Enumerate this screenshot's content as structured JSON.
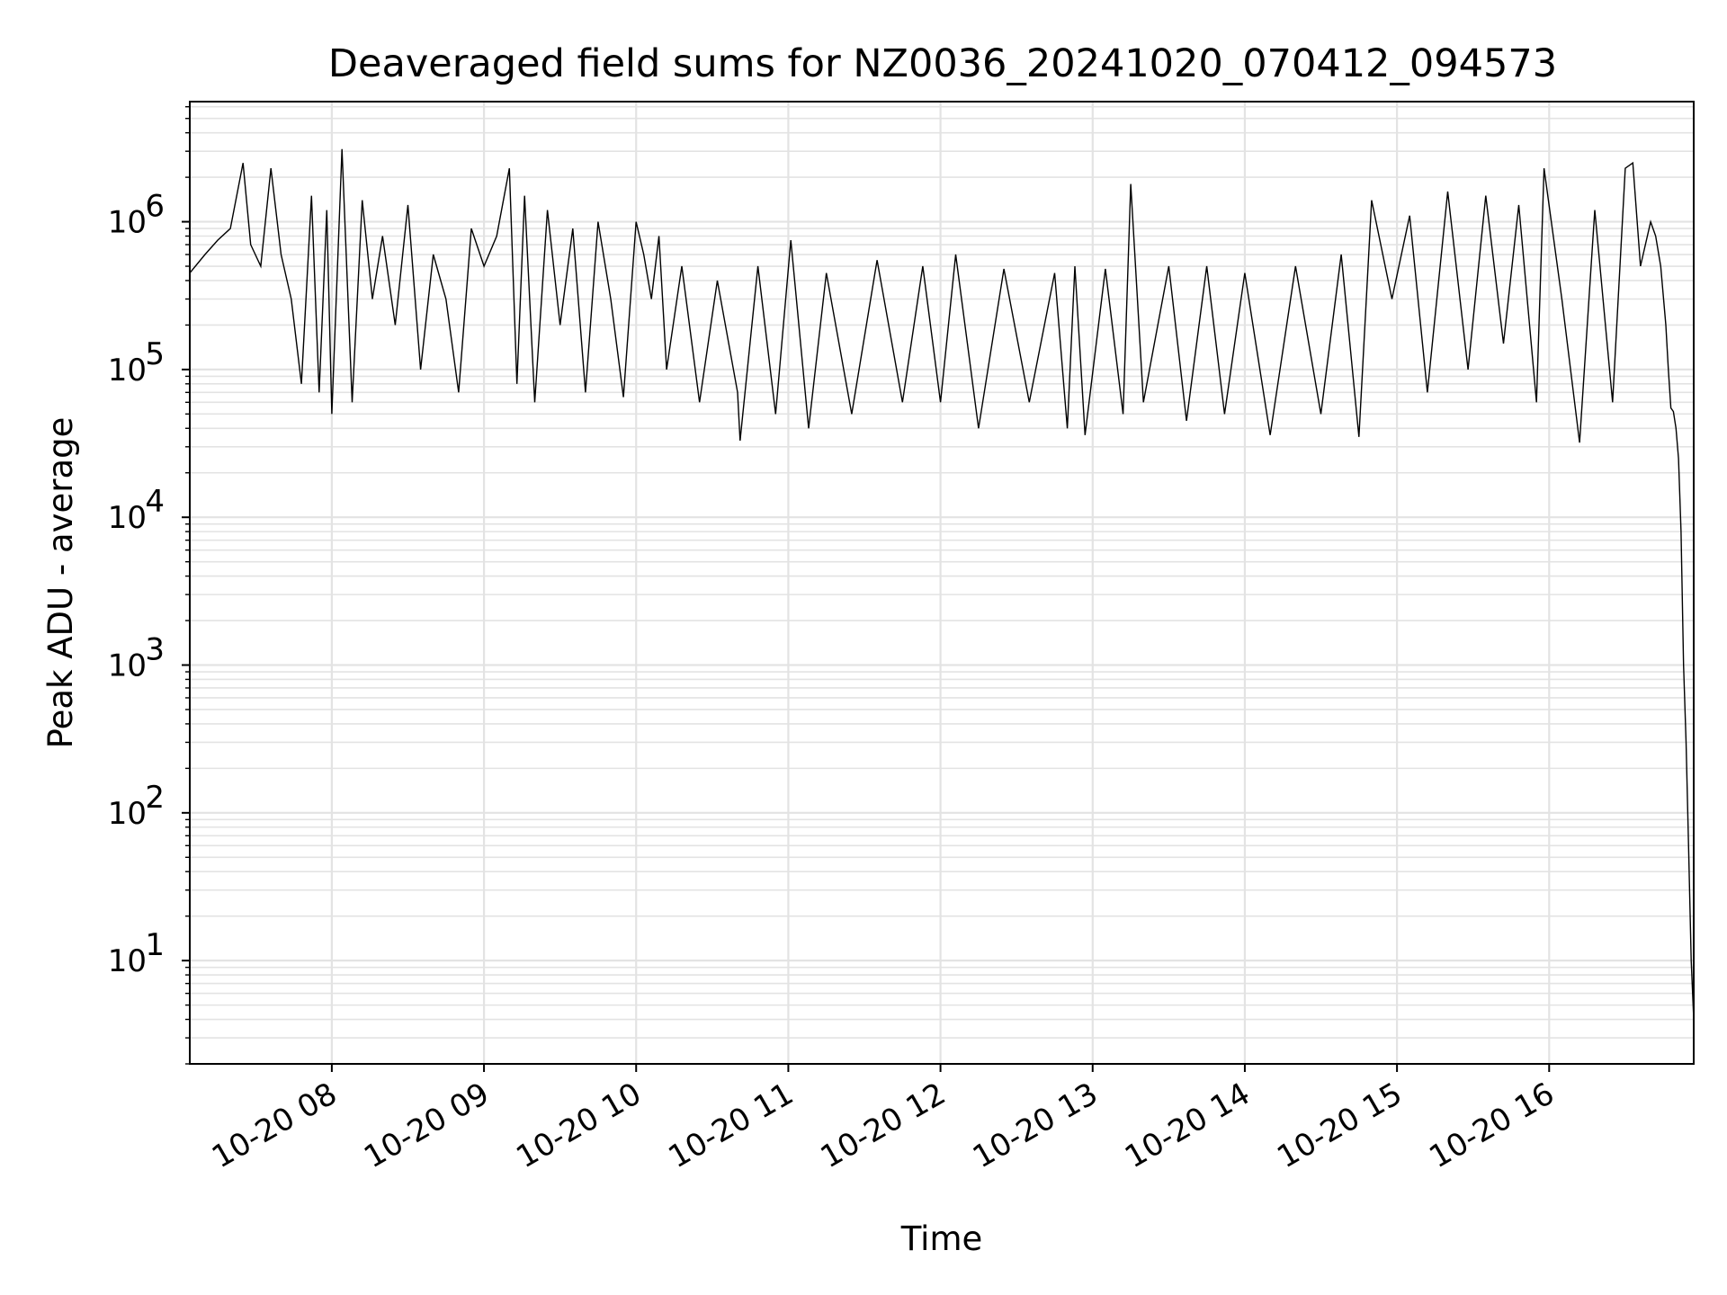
{
  "chart_data": {
    "type": "line",
    "title": "Deaveraged field sums for NZ0036_20241020_070412_094573",
    "xlabel": "Time",
    "ylabel": "Peak ADU - average",
    "yscale": "log",
    "ylim": [
      2,
      6500000
    ],
    "xlim": [
      "2024-10-20 07:04",
      "2024-10-20 16:57"
    ],
    "grid": true,
    "line_color": "#000000",
    "x_ticks": [
      {
        "t": "2024-10-20 08:00",
        "label": "10-20 08"
      },
      {
        "t": "2024-10-20 09:00",
        "label": "10-20 09"
      },
      {
        "t": "2024-10-20 10:00",
        "label": "10-20 10"
      },
      {
        "t": "2024-10-20 11:00",
        "label": "10-20 11"
      },
      {
        "t": "2024-10-20 12:00",
        "label": "10-20 12"
      },
      {
        "t": "2024-10-20 13:00",
        "label": "10-20 13"
      },
      {
        "t": "2024-10-20 14:00",
        "label": "10-20 14"
      },
      {
        "t": "2024-10-20 15:00",
        "label": "10-20 15"
      },
      {
        "t": "2024-10-20 16:00",
        "label": "10-20 16"
      }
    ],
    "y_ticks": [
      {
        "base": "10",
        "exp": "1",
        "value": 10
      },
      {
        "base": "10",
        "exp": "2",
        "value": 100
      },
      {
        "base": "10",
        "exp": "3",
        "value": 1000
      },
      {
        "base": "10",
        "exp": "4",
        "value": 10000
      },
      {
        "base": "10",
        "exp": "5",
        "value": 100000
      },
      {
        "base": "10",
        "exp": "6",
        "value": 1000000
      }
    ],
    "series": [
      {
        "values": [
          [
            "2024-10-20 07:04",
            450000
          ],
          [
            "2024-10-20 07:10",
            600000
          ],
          [
            "2024-10-20 07:15",
            750000
          ],
          [
            "2024-10-20 07:20",
            900000
          ],
          [
            "2024-10-20 07:25",
            2500000
          ],
          [
            "2024-10-20 07:28",
            700000
          ],
          [
            "2024-10-20 07:32",
            500000
          ],
          [
            "2024-10-20 07:36",
            2300000
          ],
          [
            "2024-10-20 07:40",
            600000
          ],
          [
            "2024-10-20 07:44",
            300000
          ],
          [
            "2024-10-20 07:48",
            80000
          ],
          [
            "2024-10-20 07:52",
            1500000
          ],
          [
            "2024-10-20 07:55",
            70000
          ],
          [
            "2024-10-20 07:58",
            1200000
          ],
          [
            "2024-10-20 08:00",
            50000
          ],
          [
            "2024-10-20 08:04",
            3100000
          ],
          [
            "2024-10-20 08:08",
            60000
          ],
          [
            "2024-10-20 08:12",
            1400000
          ],
          [
            "2024-10-20 08:16",
            300000
          ],
          [
            "2024-10-20 08:20",
            800000
          ],
          [
            "2024-10-20 08:25",
            200000
          ],
          [
            "2024-10-20 08:30",
            1300000
          ],
          [
            "2024-10-20 08:35",
            100000
          ],
          [
            "2024-10-20 08:40",
            600000
          ],
          [
            "2024-10-20 08:45",
            300000
          ],
          [
            "2024-10-20 08:50",
            70000
          ],
          [
            "2024-10-20 08:55",
            900000
          ],
          [
            "2024-10-20 09:00",
            500000
          ],
          [
            "2024-10-20 09:05",
            800000
          ],
          [
            "2024-10-20 09:10",
            2300000
          ],
          [
            "2024-10-20 09:13",
            80000
          ],
          [
            "2024-10-20 09:16",
            1500000
          ],
          [
            "2024-10-20 09:20",
            60000
          ],
          [
            "2024-10-20 09:25",
            1200000
          ],
          [
            "2024-10-20 09:30",
            200000
          ],
          [
            "2024-10-20 09:35",
            900000
          ],
          [
            "2024-10-20 09:40",
            70000
          ],
          [
            "2024-10-20 09:45",
            1000000
          ],
          [
            "2024-10-20 09:50",
            300000
          ],
          [
            "2024-10-20 09:55",
            65000
          ],
          [
            "2024-10-20 10:00",
            1000000
          ],
          [
            "2024-10-20 10:03",
            600000
          ],
          [
            "2024-10-20 10:06",
            300000
          ],
          [
            "2024-10-20 10:09",
            800000
          ],
          [
            "2024-10-20 10:12",
            100000
          ],
          [
            "2024-10-20 10:18",
            500000
          ],
          [
            "2024-10-20 10:25",
            60000
          ],
          [
            "2024-10-20 10:32",
            400000
          ],
          [
            "2024-10-20 10:40",
            70000
          ],
          [
            "2024-10-20 10:41",
            33000
          ],
          [
            "2024-10-20 10:48",
            500000
          ],
          [
            "2024-10-20 10:55",
            50000
          ],
          [
            "2024-10-20 11:01",
            750000
          ],
          [
            "2024-10-20 11:08",
            40000
          ],
          [
            "2024-10-20 11:15",
            450000
          ],
          [
            "2024-10-20 11:25",
            50000
          ],
          [
            "2024-10-20 11:35",
            550000
          ],
          [
            "2024-10-20 11:45",
            60000
          ],
          [
            "2024-10-20 11:53",
            500000
          ],
          [
            "2024-10-20 12:00",
            60000
          ],
          [
            "2024-10-20 12:06",
            600000
          ],
          [
            "2024-10-20 12:15",
            40000
          ],
          [
            "2024-10-20 12:25",
            480000
          ],
          [
            "2024-10-20 12:35",
            60000
          ],
          [
            "2024-10-20 12:45",
            450000
          ],
          [
            "2024-10-20 12:50",
            40000
          ],
          [
            "2024-10-20 12:53",
            500000
          ],
          [
            "2024-10-20 12:57",
            36000
          ],
          [
            "2024-10-20 13:05",
            480000
          ],
          [
            "2024-10-20 13:12",
            50000
          ],
          [
            "2024-10-20 13:15",
            1800000
          ],
          [
            "2024-10-20 13:20",
            60000
          ],
          [
            "2024-10-20 13:30",
            500000
          ],
          [
            "2024-10-20 13:37",
            45000
          ],
          [
            "2024-10-20 13:45",
            500000
          ],
          [
            "2024-10-20 13:52",
            50000
          ],
          [
            "2024-10-20 14:00",
            450000
          ],
          [
            "2024-10-20 14:10",
            36000
          ],
          [
            "2024-10-20 14:20",
            500000
          ],
          [
            "2024-10-20 14:30",
            50000
          ],
          [
            "2024-10-20 14:38",
            600000
          ],
          [
            "2024-10-20 14:45",
            35000
          ],
          [
            "2024-10-20 14:50",
            1400000
          ],
          [
            "2024-10-20 14:58",
            300000
          ],
          [
            "2024-10-20 15:05",
            1100000
          ],
          [
            "2024-10-20 15:12",
            70000
          ],
          [
            "2024-10-20 15:20",
            1600000
          ],
          [
            "2024-10-20 15:28",
            100000
          ],
          [
            "2024-10-20 15:35",
            1500000
          ],
          [
            "2024-10-20 15:42",
            150000
          ],
          [
            "2024-10-20 15:48",
            1300000
          ],
          [
            "2024-10-20 15:55",
            60000
          ],
          [
            "2024-10-20 15:58",
            2300000
          ],
          [
            "2024-10-20 16:05",
            300000
          ],
          [
            "2024-10-20 16:12",
            32000
          ],
          [
            "2024-10-20 16:18",
            1200000
          ],
          [
            "2024-10-20 16:25",
            60000
          ],
          [
            "2024-10-20 16:30",
            2300000
          ],
          [
            "2024-10-20 16:33",
            2500000
          ],
          [
            "2024-10-20 16:36",
            500000
          ],
          [
            "2024-10-20 16:40",
            1000000
          ],
          [
            "2024-10-20 16:42",
            800000
          ],
          [
            "2024-10-20 16:44",
            500000
          ],
          [
            "2024-10-20 16:46",
            200000
          ],
          [
            "2024-10-20 16:47",
            100000
          ],
          [
            "2024-10-20 16:48",
            55000
          ],
          [
            "2024-10-20 16:49",
            52000
          ],
          [
            "2024-10-20 16:50",
            40000
          ],
          [
            "2024-10-20 16:51",
            25000
          ],
          [
            "2024-10-20 16:52",
            8000
          ],
          [
            "2024-10-20 16:53",
            1000
          ],
          [
            "2024-10-20 16:54",
            300
          ],
          [
            "2024-10-20 16:55",
            55
          ],
          [
            "2024-10-20 16:56",
            10
          ],
          [
            "2024-10-20 16:57",
            4
          ]
        ]
      }
    ]
  }
}
